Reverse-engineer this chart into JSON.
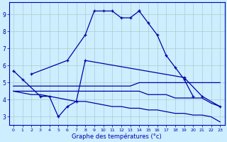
{
  "title": "",
  "xlabel": "Graphe des températures (°c)",
  "background_color": "#cceeff",
  "grid_color": "#aacccc",
  "line_color": "#0000aa",
  "xlim": [
    -0.5,
    23.5
  ],
  "ylim": [
    2.5,
    9.7
  ],
  "xticks": [
    0,
    1,
    2,
    3,
    4,
    5,
    6,
    7,
    8,
    9,
    10,
    11,
    12,
    13,
    14,
    15,
    16,
    17,
    18,
    19,
    20,
    21,
    22,
    23
  ],
  "yticks": [
    3,
    4,
    5,
    6,
    7,
    8,
    9
  ],
  "series": [
    {
      "x": [
        0,
        1,
        3,
        4,
        5,
        6,
        7,
        8,
        19,
        21,
        23
      ],
      "y": [
        5.7,
        5.2,
        4.2,
        4.2,
        3.0,
        3.6,
        3.9,
        6.3,
        5.3,
        4.2,
        3.6
      ],
      "marker": true
    },
    {
      "x": [
        2,
        6,
        8,
        9,
        10,
        11,
        12,
        13,
        14
      ],
      "y": [
        5.5,
        6.3,
        7.8,
        9.2,
        9.2,
        9.2,
        8.8,
        8.8,
        9.2
      ],
      "marker": true
    },
    {
      "x": [
        14,
        15,
        16,
        17,
        18,
        19,
        20
      ],
      "y": [
        9.2,
        8.5,
        7.8,
        6.6,
        5.9,
        5.2,
        4.2
      ],
      "marker": true
    },
    {
      "x": [
        0,
        1,
        2,
        3,
        4,
        5,
        6,
        7,
        8,
        9,
        10,
        11,
        12,
        13,
        14,
        15,
        16,
        17,
        18,
        19,
        20,
        21,
        22,
        23
      ],
      "y": [
        4.8,
        4.8,
        4.8,
        4.8,
        4.8,
        4.8,
        4.8,
        4.8,
        4.8,
        4.8,
        4.8,
        4.8,
        4.8,
        4.8,
        5.0,
        5.0,
        5.0,
        5.0,
        5.0,
        5.0,
        5.0,
        5.0,
        5.0,
        5.0
      ],
      "marker": false
    },
    {
      "x": [
        0,
        1,
        2,
        3,
        4,
        5,
        6,
        7,
        8,
        9,
        10,
        11,
        12,
        13,
        14,
        15,
        16,
        17,
        18,
        19,
        20,
        21,
        22,
        23
      ],
      "y": [
        4.5,
        4.5,
        4.5,
        4.5,
        4.5,
        4.5,
        4.5,
        4.5,
        4.5,
        4.5,
        4.5,
        4.5,
        4.5,
        4.5,
        4.5,
        4.3,
        4.3,
        4.3,
        4.1,
        4.1,
        4.1,
        4.1,
        3.8,
        3.6
      ],
      "marker": false
    },
    {
      "x": [
        0,
        1,
        2,
        3,
        4,
        5,
        6,
        7,
        8,
        9,
        10,
        11,
        12,
        13,
        14,
        15,
        16,
        17,
        18,
        19,
        20,
        21,
        22,
        23
      ],
      "y": [
        4.5,
        4.4,
        4.3,
        4.3,
        4.2,
        4.1,
        4.0,
        3.9,
        3.9,
        3.8,
        3.7,
        3.6,
        3.6,
        3.5,
        3.5,
        3.4,
        3.4,
        3.3,
        3.2,
        3.2,
        3.1,
        3.1,
        3.0,
        2.7
      ],
      "marker": false
    }
  ]
}
